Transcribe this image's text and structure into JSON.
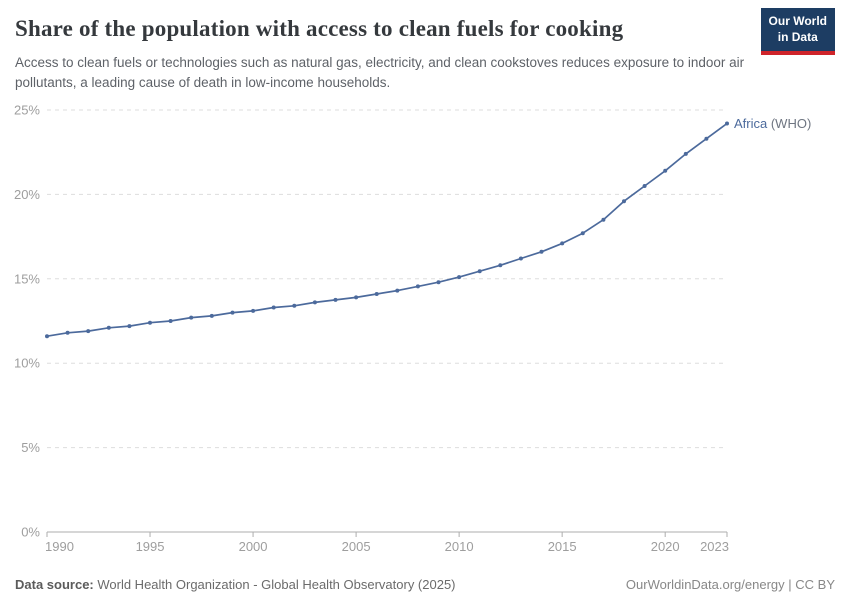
{
  "header": {
    "title": "Share of the population with access to clean fuels for cooking",
    "subtitle": "Access to clean fuels or technologies such as natural gas, electricity, and clean cookstoves reduces exposure to indoor air pollutants, a leading cause of death in low-income households.",
    "logo": {
      "line1": "Our World",
      "line2": "in Data",
      "bg_color": "#1d3d63",
      "stripe_color": "#cf242a"
    }
  },
  "chart_data": {
    "type": "line",
    "title": "Share of the population with access to clean fuels for cooking",
    "xlabel": "",
    "ylabel": "",
    "xlim": [
      1990,
      2023
    ],
    "ylim": [
      0,
      25
    ],
    "grid": "horizontal-dashed",
    "legend_position": "end-of-line",
    "yticks": [
      0,
      5,
      10,
      15,
      20,
      25
    ],
    "ytick_labels": [
      "0%",
      "5%",
      "10%",
      "15%",
      "20%",
      "25%"
    ],
    "xticks": [
      1990,
      1995,
      2000,
      2005,
      2010,
      2015,
      2020,
      2023
    ],
    "xtick_labels": [
      "1990",
      "1995",
      "2000",
      "2005",
      "2010",
      "2015",
      "2020",
      "2023"
    ],
    "x": [
      1990,
      1991,
      1992,
      1993,
      1994,
      1995,
      1996,
      1997,
      1998,
      1999,
      2000,
      2001,
      2002,
      2003,
      2004,
      2005,
      2006,
      2007,
      2008,
      2009,
      2010,
      2011,
      2012,
      2013,
      2014,
      2015,
      2016,
      2017,
      2018,
      2019,
      2020,
      2021,
      2022,
      2023
    ],
    "series": [
      {
        "name": "Africa (WHO)",
        "label_main": "Africa",
        "label_suffix": " (WHO)",
        "color": "#4c6a9c",
        "suffix_color": "#6e7581",
        "values": [
          11.6,
          11.8,
          11.9,
          12.1,
          12.2,
          12.4,
          12.5,
          12.7,
          12.8,
          13.0,
          13.1,
          13.3,
          13.4,
          13.6,
          13.75,
          13.9,
          14.1,
          14.3,
          14.55,
          14.8,
          15.1,
          15.45,
          15.8,
          16.2,
          16.6,
          17.1,
          17.7,
          18.5,
          19.6,
          20.5,
          21.4,
          22.4,
          23.3,
          24.2
        ]
      }
    ],
    "axis_color": "#adadad",
    "grid_color": "#dddddd",
    "tick_label_color": "#9e9e9e"
  },
  "footer": {
    "datasource_label": "Data source:",
    "datasource_text": " World Health Organization - Global Health Observatory (2025)",
    "link_text": "OurWorldinData.org/energy",
    "separator": " | ",
    "license": "CC BY"
  }
}
